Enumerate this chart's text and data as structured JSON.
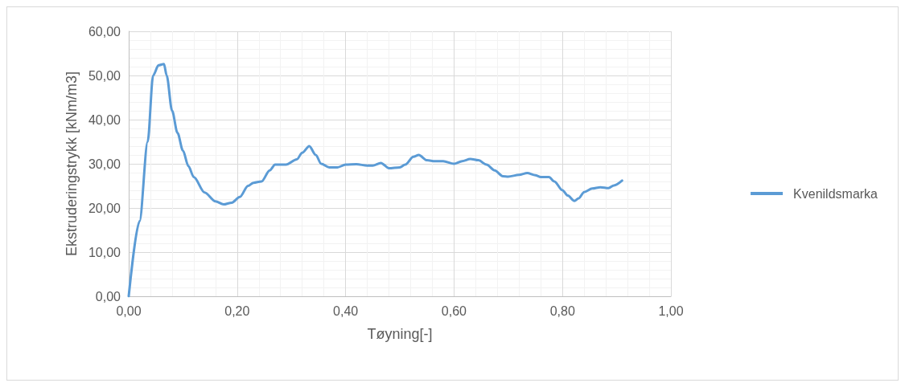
{
  "chart_data": {
    "type": "line",
    "xlabel": "Tøyning[-]",
    "ylabel": "Ekstruderingstrykk [kNm/m3]",
    "xlim": [
      0,
      1
    ],
    "xticks": [
      {
        "value": 0,
        "label": "0,00"
      },
      {
        "value": 0.2,
        "label": "0,20"
      },
      {
        "value": 0.4,
        "label": "0,40"
      },
      {
        "value": 0.6,
        "label": "0,60"
      },
      {
        "value": 0.8,
        "label": "0,80"
      },
      {
        "value": 1,
        "label": "1,00"
      }
    ],
    "ylim": [
      0,
      60
    ],
    "yticks": [
      {
        "value": 0,
        "label": "0,00"
      },
      {
        "value": 10,
        "label": "10,00"
      },
      {
        "value": 20,
        "label": "20,00"
      },
      {
        "value": 30,
        "label": "30,00"
      },
      {
        "value": 40,
        "label": "40,00"
      },
      {
        "value": 50,
        "label": "50,00"
      },
      {
        "value": 60,
        "label": "60,00"
      }
    ],
    "grid": true,
    "legend": "right",
    "marker": "none",
    "line_style": "solid",
    "series": [
      {
        "name": "Kvenildsmarka",
        "color": "#5b9bd5",
        "x": [
          0,
          0.02,
          0.035,
          0.045,
          0.055,
          0.065,
          0.07,
          0.08,
          0.09,
          0.1,
          0.11,
          0.12,
          0.14,
          0.16,
          0.175,
          0.19,
          0.205,
          0.22,
          0.23,
          0.245,
          0.26,
          0.27,
          0.29,
          0.31,
          0.32,
          0.333,
          0.345,
          0.355,
          0.37,
          0.385,
          0.4,
          0.42,
          0.44,
          0.45,
          0.465,
          0.48,
          0.5,
          0.51,
          0.525,
          0.535,
          0.55,
          0.565,
          0.58,
          0.6,
          0.615,
          0.63,
          0.645,
          0.66,
          0.675,
          0.69,
          0.7,
          0.72,
          0.735,
          0.75,
          0.76,
          0.775,
          0.785,
          0.8,
          0.81,
          0.822,
          0.83,
          0.84,
          0.855,
          0.87,
          0.885,
          0.895,
          0.91
        ],
        "values": [
          0,
          17,
          35,
          50,
          52.3,
          52.6,
          50,
          42,
          37,
          33,
          29.5,
          27,
          23.5,
          21.5,
          20.8,
          21.2,
          22.5,
          25,
          25.7,
          26,
          28.5,
          29.8,
          29.8,
          31,
          32.5,
          34,
          32,
          30,
          29.2,
          29.2,
          29.8,
          29.9,
          29.6,
          29.6,
          30.2,
          29,
          29.2,
          29.8,
          31.6,
          32,
          30.8,
          30.6,
          30.6,
          30,
          30.6,
          31.1,
          30.8,
          29.8,
          28.5,
          27.2,
          27.1,
          27.5,
          27.9,
          27.4,
          27,
          27,
          26,
          24,
          22.8,
          21.6,
          22.2,
          23.6,
          24.4,
          24.7,
          24.5,
          25.1,
          26.2
        ]
      }
    ]
  }
}
